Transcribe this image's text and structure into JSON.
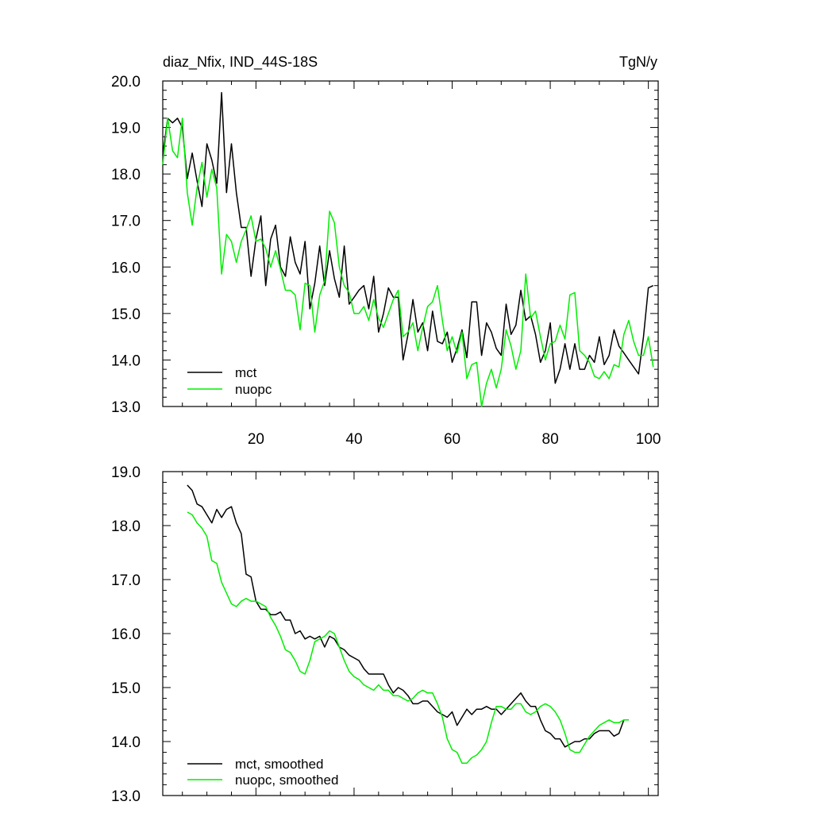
{
  "chart_data": [
    {
      "type": "line",
      "title": "diaz_Nfix, IND_44S-18S",
      "units": "TgN/y",
      "xlabel": "",
      "ylabel": "",
      "xlim": [
        1,
        102
      ],
      "ylim": [
        13.0,
        20.0
      ],
      "xticks": [
        20,
        40,
        60,
        80,
        100
      ],
      "xtick_labels": [
        "20",
        "40",
        "60",
        "80",
        "100"
      ],
      "yticks": [
        13.0,
        14.0,
        15.0,
        16.0,
        17.0,
        18.0,
        19.0,
        20.0
      ],
      "ytick_labels": [
        "13.0",
        "14.0",
        "15.0",
        "16.0",
        "17.0",
        "18.0",
        "19.0",
        "20.0"
      ],
      "legend_position": "bottom-left",
      "series": [
        {
          "name": "mct",
          "color": "#000000",
          "x": [
            1,
            2,
            3,
            4,
            5,
            6,
            7,
            8,
            9,
            10,
            11,
            12,
            13,
            14,
            15,
            16,
            17,
            18,
            19,
            20,
            21,
            22,
            23,
            24,
            25,
            26,
            27,
            28,
            29,
            30,
            31,
            32,
            33,
            34,
            35,
            36,
            37,
            38,
            39,
            40,
            41,
            42,
            43,
            44,
            45,
            46,
            47,
            48,
            49,
            50,
            51,
            52,
            53,
            54,
            55,
            56,
            57,
            58,
            59,
            60,
            61,
            62,
            63,
            64,
            65,
            66,
            67,
            68,
            69,
            70,
            71,
            72,
            73,
            74,
            75,
            76,
            77,
            78,
            79,
            80,
            81,
            82,
            83,
            84,
            85,
            86,
            87,
            88,
            89,
            90,
            91,
            92,
            93,
            94,
            95,
            96,
            97,
            98,
            99,
            100,
            101
          ],
          "values": [
            18.4,
            19.2,
            19.1,
            19.2,
            19.0,
            17.9,
            18.45,
            17.85,
            17.3,
            18.65,
            18.3,
            17.8,
            19.75,
            17.6,
            18.65,
            17.6,
            16.85,
            16.85,
            15.8,
            16.6,
            17.1,
            15.6,
            16.6,
            16.9,
            16.0,
            15.8,
            16.65,
            16.1,
            15.85,
            16.55,
            15.1,
            15.65,
            16.45,
            15.6,
            16.35,
            15.75,
            15.35,
            16.45,
            15.2,
            15.35,
            15.5,
            15.6,
            15.1,
            15.8,
            14.6,
            15.0,
            15.55,
            15.35,
            15.35,
            14.0,
            14.55,
            15.3,
            14.6,
            14.8,
            14.2,
            15.05,
            14.4,
            14.35,
            14.6,
            13.95,
            14.25,
            14.65,
            14.05,
            15.25,
            15.25,
            14.1,
            14.8,
            14.6,
            14.25,
            14.1,
            15.2,
            14.55,
            14.75,
            15.5,
            14.85,
            14.95,
            14.55,
            13.95,
            14.2,
            14.8,
            13.5,
            13.8,
            14.35,
            13.8,
            14.35,
            13.8,
            13.8,
            14.1,
            13.95,
            14.5,
            13.9,
            14.1,
            14.65,
            14.3,
            14.15,
            14.0,
            13.85,
            13.7,
            14.5,
            15.55,
            15.6
          ]
        },
        {
          "name": "nuopc",
          "color": "#00ee00",
          "x": [
            1,
            2,
            3,
            4,
            5,
            6,
            7,
            8,
            9,
            10,
            11,
            12,
            13,
            14,
            15,
            16,
            17,
            18,
            19,
            20,
            21,
            22,
            23,
            24,
            25,
            26,
            27,
            28,
            29,
            30,
            31,
            32,
            33,
            34,
            35,
            36,
            37,
            38,
            39,
            40,
            41,
            42,
            43,
            44,
            45,
            46,
            47,
            48,
            49,
            50,
            51,
            52,
            53,
            54,
            55,
            56,
            57,
            58,
            59,
            60,
            61,
            62,
            63,
            64,
            65,
            66,
            67,
            68,
            69,
            70,
            71,
            72,
            73,
            74,
            75,
            76,
            77,
            78,
            79,
            80,
            81,
            82,
            83,
            84,
            85,
            86,
            87,
            88,
            89,
            90,
            91,
            92,
            93,
            94,
            95,
            96,
            97,
            98,
            99,
            100,
            101
          ],
          "values": [
            18.2,
            19.2,
            18.5,
            18.35,
            19.2,
            17.6,
            16.9,
            17.7,
            18.25,
            17.5,
            18.1,
            17.7,
            15.85,
            16.7,
            16.55,
            16.1,
            16.55,
            16.8,
            17.1,
            16.55,
            16.6,
            16.4,
            16.0,
            16.35,
            15.95,
            15.5,
            15.5,
            15.4,
            14.65,
            15.65,
            15.6,
            14.6,
            15.4,
            15.7,
            17.2,
            16.95,
            16.0,
            15.6,
            15.45,
            15.0,
            15.0,
            15.15,
            14.85,
            15.3,
            14.9,
            14.7,
            15.0,
            15.3,
            15.5,
            14.5,
            14.6,
            14.8,
            14.2,
            14.7,
            15.15,
            15.25,
            15.6,
            14.85,
            14.2,
            14.5,
            14.15,
            14.6,
            13.6,
            13.9,
            13.95,
            13.0,
            13.5,
            13.8,
            13.4,
            13.8,
            14.65,
            14.3,
            13.8,
            14.2,
            15.85,
            14.9,
            15.05,
            14.5,
            14.0,
            14.35,
            14.4,
            14.75,
            14.45,
            15.4,
            15.45,
            14.2,
            14.1,
            13.95,
            13.65,
            13.6,
            13.75,
            13.6,
            13.9,
            13.85,
            14.55,
            14.85,
            14.4,
            14.1,
            14.1,
            14.5,
            13.85
          ]
        }
      ]
    },
    {
      "type": "line",
      "title": "",
      "xlabel": "",
      "ylabel": "",
      "xlim": [
        1,
        102
      ],
      "ylim": [
        13.0,
        19.0
      ],
      "xticks": [
        20,
        40,
        60,
        80,
        100
      ],
      "yticks": [
        13.0,
        14.0,
        15.0,
        16.0,
        17.0,
        18.0,
        19.0
      ],
      "ytick_labels": [
        "13.0",
        "14.0",
        "15.0",
        "16.0",
        "17.0",
        "18.0",
        "19.0"
      ],
      "legend_position": "bottom-left",
      "series": [
        {
          "name": "mct, smoothed",
          "color": "#000000",
          "x": [
            6,
            7,
            8,
            9,
            10,
            11,
            12,
            13,
            14,
            15,
            16,
            17,
            18,
            19,
            20,
            21,
            22,
            23,
            24,
            25,
            26,
            27,
            28,
            29,
            30,
            31,
            32,
            33,
            34,
            35,
            36,
            37,
            38,
            39,
            40,
            41,
            42,
            43,
            44,
            45,
            46,
            47,
            48,
            49,
            50,
            51,
            52,
            53,
            54,
            55,
            56,
            57,
            58,
            59,
            60,
            61,
            62,
            63,
            64,
            65,
            66,
            67,
            68,
            69,
            70,
            71,
            72,
            73,
            74,
            75,
            76,
            77,
            78,
            79,
            80,
            81,
            82,
            83,
            84,
            85,
            86,
            87,
            88,
            89,
            90,
            91,
            92,
            93,
            94,
            95,
            96
          ],
          "values": [
            18.75,
            18.65,
            18.4,
            18.35,
            18.2,
            18.05,
            18.3,
            18.15,
            18.3,
            18.35,
            18.05,
            17.85,
            17.1,
            17.05,
            16.6,
            16.45,
            16.45,
            16.35,
            16.35,
            16.4,
            16.25,
            16.25,
            16.0,
            16.05,
            15.9,
            15.95,
            15.9,
            15.95,
            15.75,
            15.95,
            15.9,
            15.75,
            15.7,
            15.6,
            15.55,
            15.5,
            15.35,
            15.25,
            15.25,
            15.25,
            15.25,
            15.05,
            14.9,
            15.0,
            14.95,
            14.85,
            14.7,
            14.7,
            14.75,
            14.75,
            14.65,
            14.55,
            14.5,
            14.45,
            14.55,
            14.3,
            14.45,
            14.6,
            14.5,
            14.6,
            14.6,
            14.65,
            14.6,
            14.6,
            14.5,
            14.6,
            14.7,
            14.8,
            14.9,
            14.75,
            14.65,
            14.65,
            14.4,
            14.2,
            14.15,
            14.05,
            14.05,
            13.9,
            13.95,
            14.0,
            14.0,
            14.05,
            14.05,
            14.15,
            14.2,
            14.2,
            14.2,
            14.1,
            14.15,
            14.4,
            14.4
          ]
        },
        {
          "name": "nuopc, smoothed",
          "color": "#00ee00",
          "x": [
            6,
            7,
            8,
            9,
            10,
            11,
            12,
            13,
            14,
            15,
            16,
            17,
            18,
            19,
            20,
            21,
            22,
            23,
            24,
            25,
            26,
            27,
            28,
            29,
            30,
            31,
            32,
            33,
            34,
            35,
            36,
            37,
            38,
            39,
            40,
            41,
            42,
            43,
            44,
            45,
            46,
            47,
            48,
            49,
            50,
            51,
            52,
            53,
            54,
            55,
            56,
            57,
            58,
            59,
            60,
            61,
            62,
            63,
            64,
            65,
            66,
            67,
            68,
            69,
            70,
            71,
            72,
            73,
            74,
            75,
            76,
            77,
            78,
            79,
            80,
            81,
            82,
            83,
            84,
            85,
            86,
            87,
            88,
            89,
            90,
            91,
            92,
            93,
            94,
            95,
            96
          ],
          "values": [
            18.25,
            18.2,
            18.05,
            17.95,
            17.8,
            17.35,
            17.3,
            16.95,
            16.75,
            16.55,
            16.5,
            16.6,
            16.65,
            16.6,
            16.6,
            16.55,
            16.5,
            16.3,
            16.15,
            15.95,
            15.7,
            15.65,
            15.5,
            15.3,
            15.25,
            15.5,
            15.85,
            15.9,
            15.95,
            16.05,
            16.0,
            15.75,
            15.5,
            15.3,
            15.2,
            15.15,
            15.05,
            15.0,
            14.95,
            15.05,
            14.95,
            14.95,
            14.85,
            14.85,
            14.8,
            14.75,
            14.8,
            14.9,
            14.95,
            14.9,
            14.9,
            14.7,
            14.45,
            14.05,
            13.85,
            13.8,
            13.6,
            13.6,
            13.7,
            13.75,
            13.85,
            14.0,
            14.35,
            14.65,
            14.65,
            14.6,
            14.6,
            14.7,
            14.7,
            14.55,
            14.5,
            14.55,
            14.65,
            14.7,
            14.65,
            14.55,
            14.4,
            14.15,
            13.85,
            13.8,
            13.8,
            13.95,
            14.1,
            14.2,
            14.3,
            14.35,
            14.4,
            14.35,
            14.35,
            14.4,
            14.4
          ]
        }
      ]
    }
  ]
}
